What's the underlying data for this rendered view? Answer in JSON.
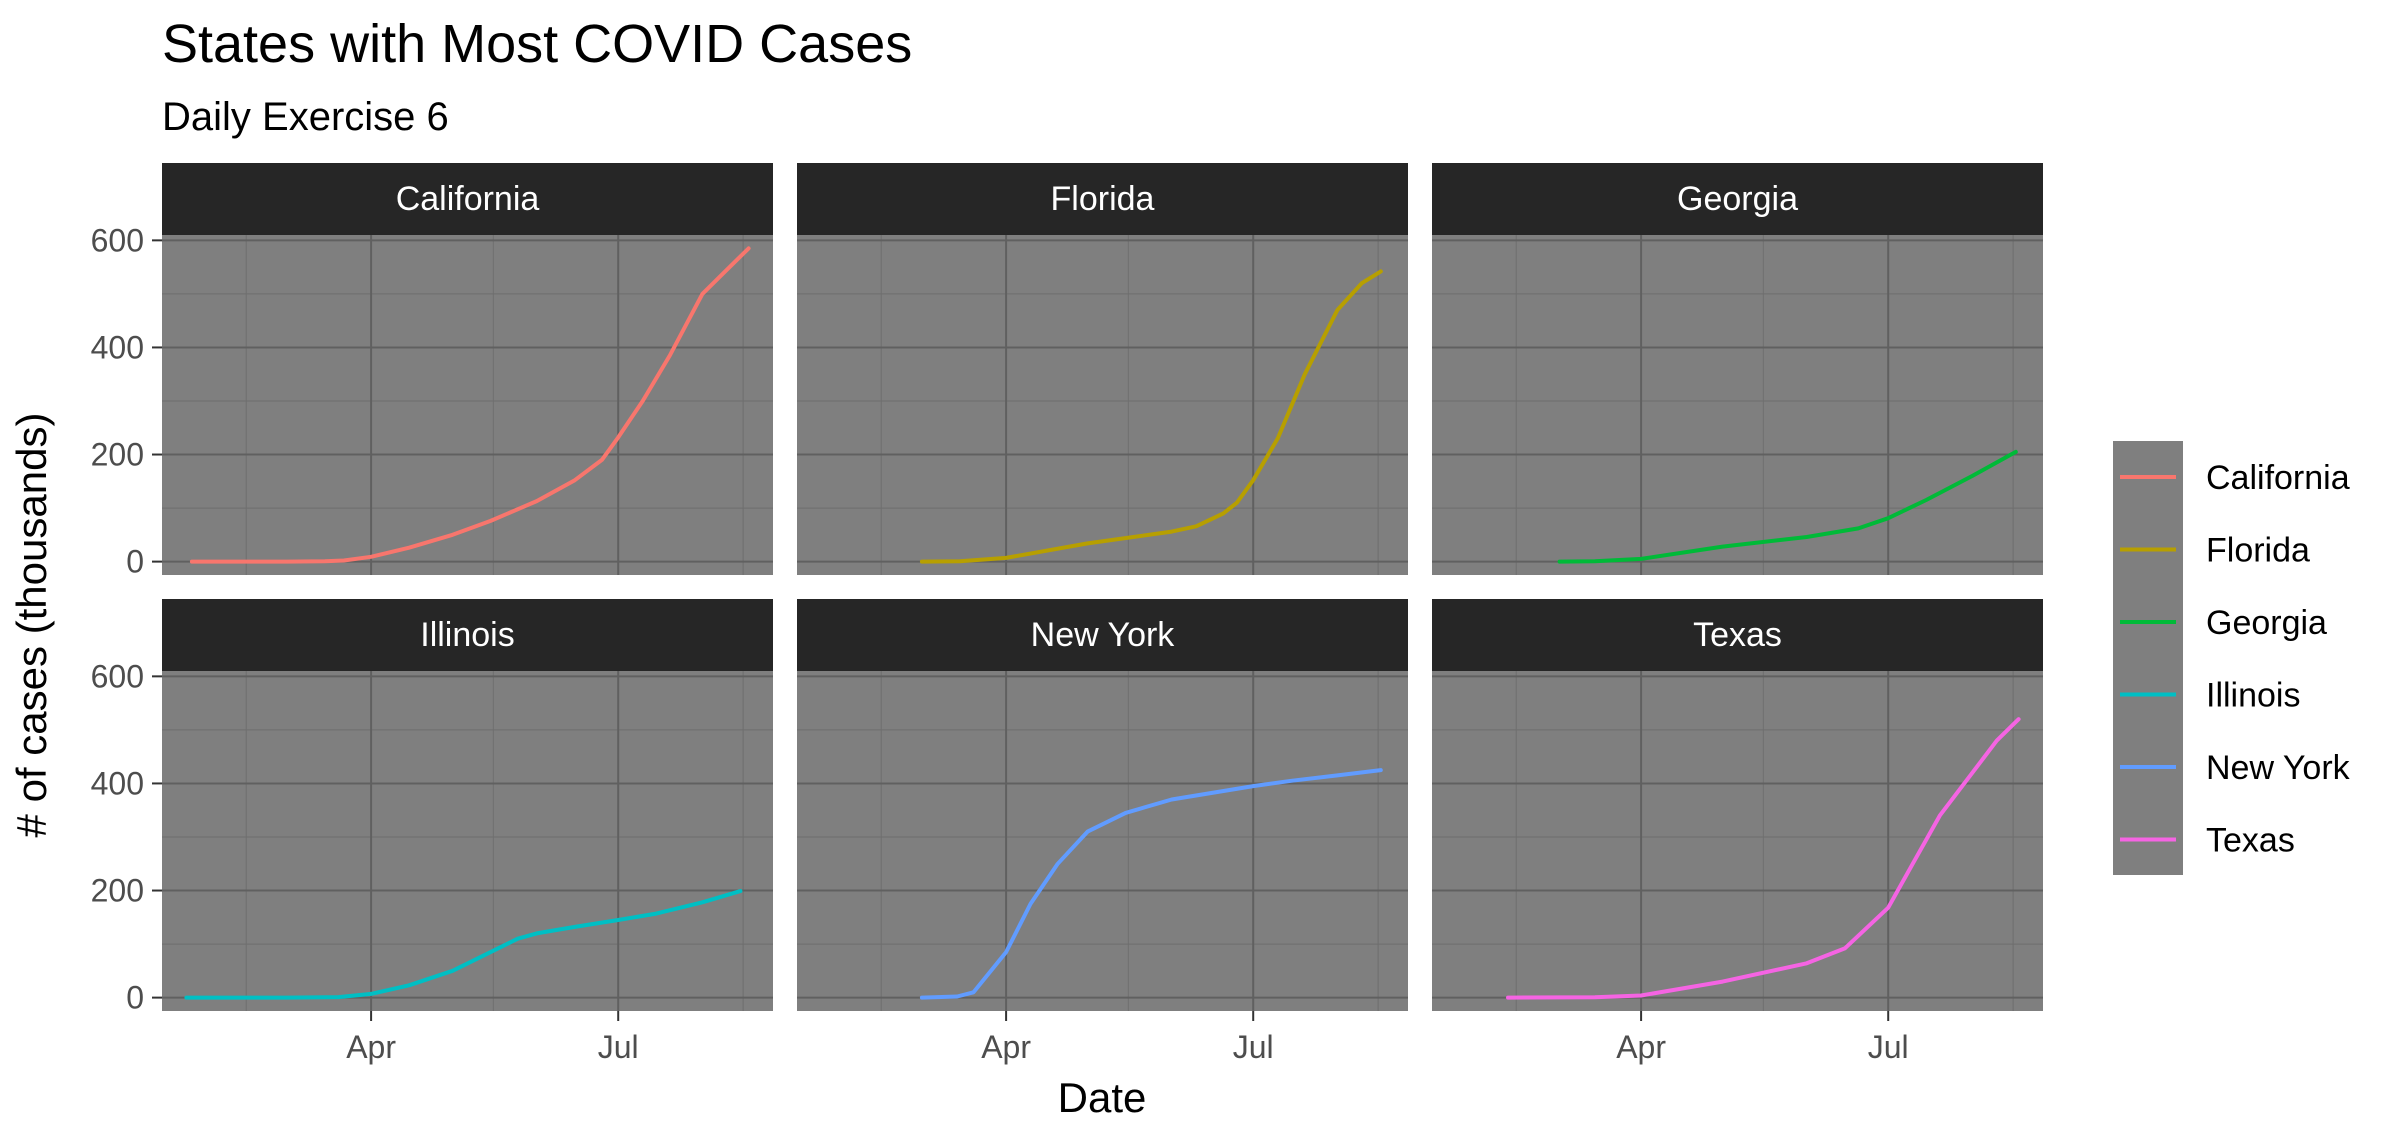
{
  "chart_data": {
    "type": "line",
    "title": "States with Most COVID Cases",
    "subtitle": "Daily Exercise 6",
    "xlabel": "Date",
    "ylabel": "# of cases (thousands)",
    "x_ticks": [
      "Apr",
      "Jul"
    ],
    "y_ticks": [
      0,
      200,
      400,
      600
    ],
    "xlim": [
      "2020-01-15",
      "2020-08-27"
    ],
    "ylim": [
      -25,
      610
    ],
    "grid": true,
    "legend_position": "right",
    "facets": [
      "California",
      "Florida",
      "Georgia",
      "Illinois",
      "New York",
      "Texas"
    ],
    "series": [
      {
        "name": "California",
        "color": "#F8766D",
        "x": [
          "2020-01-26",
          "2020-03-01",
          "2020-03-15",
          "2020-03-22",
          "2020-04-01",
          "2020-04-15",
          "2020-05-01",
          "2020-05-15",
          "2020-06-01",
          "2020-06-15",
          "2020-06-25",
          "2020-07-01",
          "2020-07-10",
          "2020-07-20",
          "2020-08-01",
          "2020-08-10",
          "2020-08-18"
        ],
        "y": [
          0,
          0,
          0.5,
          2,
          9,
          26,
          50,
          76,
          113,
          152,
          190,
          232,
          300,
          385,
          500,
          545,
          585
        ]
      },
      {
        "name": "Florida",
        "color": "#B79F00",
        "x": [
          "2020-03-01",
          "2020-03-15",
          "2020-04-01",
          "2020-05-01",
          "2020-06-01",
          "2020-06-10",
          "2020-06-20",
          "2020-06-25",
          "2020-07-01",
          "2020-07-10",
          "2020-07-20",
          "2020-08-01",
          "2020-08-10",
          "2020-08-17"
        ],
        "y": [
          0,
          0.5,
          7,
          34,
          56,
          66,
          90,
          110,
          152,
          230,
          350,
          470,
          520,
          542
        ]
      },
      {
        "name": "Georgia",
        "color": "#00BA38",
        "x": [
          "2020-03-02",
          "2020-03-15",
          "2020-04-01",
          "2020-05-01",
          "2020-06-01",
          "2020-06-20",
          "2020-07-01",
          "2020-07-15",
          "2020-08-01",
          "2020-08-17"
        ],
        "y": [
          0,
          0.5,
          5,
          28,
          46,
          62,
          81,
          115,
          160,
          205
        ]
      },
      {
        "name": "Illinois",
        "color": "#00BFC4",
        "x": [
          "2020-01-24",
          "2020-03-01",
          "2020-03-20",
          "2020-04-01",
          "2020-04-15",
          "2020-05-01",
          "2020-05-15",
          "2020-05-25",
          "2020-06-01",
          "2020-06-15",
          "2020-07-01",
          "2020-07-15",
          "2020-08-01",
          "2020-08-15"
        ],
        "y": [
          0,
          0,
          1,
          7,
          23,
          50,
          85,
          110,
          120,
          132,
          145,
          157,
          178,
          199
        ]
      },
      {
        "name": "New York",
        "color": "#619CFF",
        "x": [
          "2020-03-01",
          "2020-03-14",
          "2020-03-20",
          "2020-04-01",
          "2020-04-10",
          "2020-04-20",
          "2020-05-01",
          "2020-05-15",
          "2020-06-01",
          "2020-07-01",
          "2020-07-15",
          "2020-08-01",
          "2020-08-17"
        ],
        "y": [
          0,
          2,
          10,
          85,
          175,
          250,
          310,
          345,
          370,
          395,
          405,
          415,
          425
        ]
      },
      {
        "name": "Texas",
        "color": "#F564E3",
        "x": [
          "2020-02-12",
          "2020-03-15",
          "2020-04-01",
          "2020-05-01",
          "2020-06-01",
          "2020-06-15",
          "2020-07-01",
          "2020-07-10",
          "2020-07-20",
          "2020-08-01",
          "2020-08-10",
          "2020-08-18"
        ],
        "y": [
          0,
          0.5,
          4,
          30,
          64,
          92,
          168,
          250,
          340,
          420,
          480,
          520
        ]
      }
    ]
  }
}
